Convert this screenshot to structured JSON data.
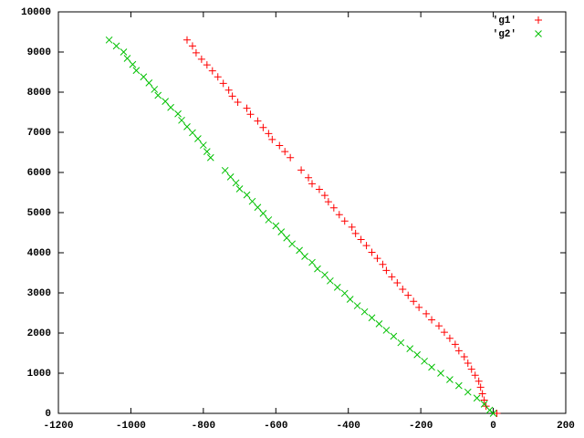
{
  "chart_data": {
    "type": "scatter",
    "xlim": [
      -1200,
      200
    ],
    "xticks": [
      -1200,
      -1000,
      -800,
      -600,
      -400,
      -200,
      0,
      200
    ],
    "ylim": [
      0,
      10000
    ],
    "yticks": [
      0,
      1000,
      2000,
      3000,
      4000,
      5000,
      6000,
      7000,
      8000,
      9000,
      10000
    ],
    "legend": "top-right",
    "series": [
      {
        "name": "'g1'",
        "color": "#ff0000",
        "marker": "plus",
        "x": [
          -845,
          -830,
          -820,
          -805,
          -790,
          -775,
          -760,
          -745,
          -730,
          -720,
          -705,
          -680,
          -670,
          -650,
          -635,
          -620,
          -610,
          -590,
          -575,
          -560,
          -530,
          -510,
          -500,
          -480,
          -465,
          -455,
          -440,
          -425,
          -410,
          -390,
          -380,
          -365,
          -350,
          -335,
          -320,
          -305,
          -295,
          -280,
          -265,
          -250,
          -235,
          -220,
          -205,
          -185,
          -170,
          -150,
          -135,
          -120,
          -105,
          -95,
          -80,
          -70,
          -60,
          -50,
          -40,
          -35,
          -30,
          -25,
          -20,
          10
        ],
        "values": [
          9300,
          9150,
          8980,
          8820,
          8680,
          8530,
          8380,
          8220,
          8050,
          7900,
          7750,
          7600,
          7450,
          7280,
          7120,
          6970,
          6820,
          6670,
          6520,
          6370,
          6060,
          5870,
          5720,
          5580,
          5430,
          5270,
          5120,
          4950,
          4790,
          4640,
          4480,
          4330,
          4180,
          4010,
          3860,
          3710,
          3560,
          3400,
          3250,
          3090,
          2940,
          2790,
          2640,
          2480,
          2330,
          2180,
          2020,
          1870,
          1720,
          1560,
          1410,
          1250,
          1100,
          950,
          800,
          650,
          490,
          330,
          180,
          0
        ]
      },
      {
        "name": "'g2'",
        "color": "#00c000",
        "marker": "cross",
        "x": [
          -1060,
          -1040,
          -1020,
          -1010,
          -995,
          -985,
          -965,
          -950,
          -935,
          -925,
          -905,
          -890,
          -870,
          -860,
          -845,
          -830,
          -815,
          -800,
          -790,
          -780,
          -740,
          -725,
          -710,
          -700,
          -680,
          -665,
          -650,
          -635,
          -620,
          -600,
          -585,
          -570,
          -555,
          -535,
          -520,
          -500,
          -485,
          -465,
          -450,
          -430,
          -410,
          -395,
          -375,
          -355,
          -335,
          -315,
          -295,
          -275,
          -255,
          -230,
          -210,
          -190,
          -170,
          -145,
          -120,
          -95,
          -70,
          -45,
          -25,
          -10,
          0
        ],
        "values": [
          9300,
          9150,
          9000,
          8840,
          8690,
          8540,
          8380,
          8230,
          8070,
          7920,
          7770,
          7620,
          7460,
          7300,
          7140,
          6990,
          6840,
          6680,
          6520,
          6370,
          6050,
          5890,
          5740,
          5590,
          5440,
          5280,
          5130,
          4980,
          4820,
          4670,
          4520,
          4370,
          4220,
          4060,
          3910,
          3760,
          3600,
          3450,
          3300,
          3140,
          2990,
          2840,
          2680,
          2530,
          2380,
          2230,
          2070,
          1920,
          1760,
          1610,
          1460,
          1300,
          1150,
          1000,
          840,
          690,
          530,
          380,
          230,
          80,
          0
        ]
      }
    ]
  }
}
